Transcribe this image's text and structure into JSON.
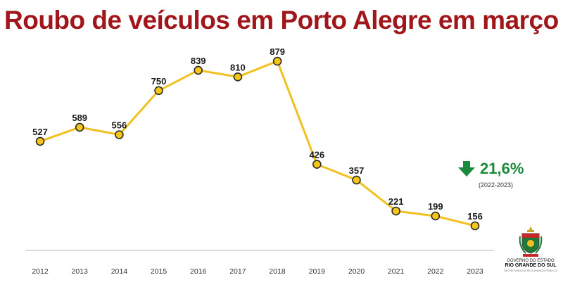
{
  "header": {
    "title": "Roubo de veículos em Porto Alegre em março"
  },
  "chart_data": {
    "type": "line",
    "title": "Roubo de veículos em Porto Alegre em março",
    "xlabel": "",
    "ylabel": "",
    "x": [
      "2012",
      "2013",
      "2014",
      "2015",
      "2016",
      "2017",
      "2018",
      "2019",
      "2020",
      "2021",
      "2022",
      "2023"
    ],
    "series": [
      {
        "values": [
          527,
          589,
          556,
          750,
          839,
          810,
          879,
          426,
          357,
          221,
          199,
          156
        ]
      }
    ],
    "ylim": [
      0,
      900
    ],
    "grid": false,
    "legend": "none",
    "line_color": "#f2c01f",
    "marker_fill": "#f5c518",
    "marker_stroke": "#2b2b2b",
    "baseline_color": "#cfcfcf"
  },
  "annotation": {
    "value": "21,6%",
    "range": "(2022-2023)",
    "direction": "down",
    "color": "#1a8a3c"
  },
  "logo": {
    "line1": "GOVERNO DO ESTADO",
    "line2": "RIO GRANDE DO SUL",
    "line3": "SECRETARIA DA SEGURANÇA PÚBLICA"
  }
}
